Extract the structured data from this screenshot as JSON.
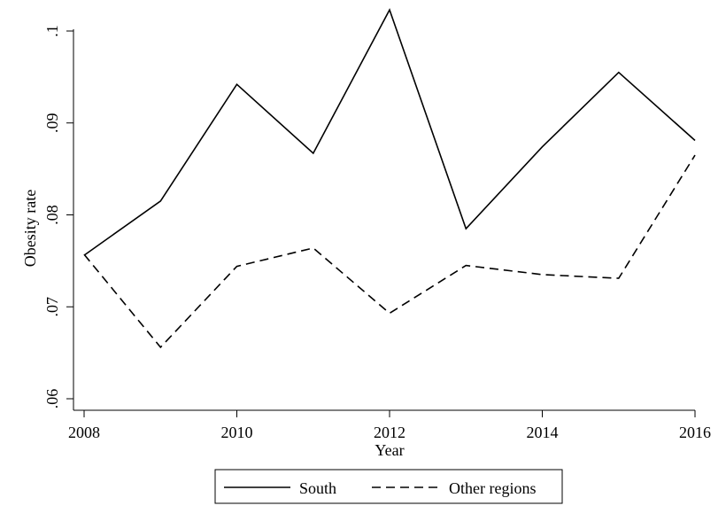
{
  "chart_data": {
    "type": "line",
    "title": "",
    "xlabel": "Year",
    "ylabel": "Obesity rate",
    "x": [
      2008,
      2009,
      2010,
      2011,
      2012,
      2013,
      2014,
      2015,
      2016
    ],
    "series": [
      {
        "name": "South",
        "style": "solid",
        "color": "#000000",
        "values": [
          0.0756,
          0.0815,
          0.0942,
          0.0867,
          0.1023,
          0.0785,
          0.0874,
          0.0955,
          0.0881
        ]
      },
      {
        "name": "Other regions",
        "style": "dashed",
        "color": "#000000",
        "values": [
          0.0757,
          0.0656,
          0.0744,
          0.0764,
          0.0693,
          0.0745,
          0.0735,
          0.0731,
          0.0865
        ]
      }
    ],
    "xticks": [
      2008,
      2010,
      2012,
      2014,
      2016
    ],
    "xtick_labels": [
      "2008",
      "2010",
      "2012",
      "2014",
      "2016"
    ],
    "yticks": [
      0.06,
      0.07,
      0.08,
      0.09,
      0.1
    ],
    "ytick_labels": [
      ".06",
      ".07",
      ".08",
      ".09",
      ".1"
    ],
    "xlim": [
      2008,
      2016
    ],
    "ylim": [
      0.06,
      0.1
    ],
    "grid": false,
    "legend_position": "bottom"
  }
}
